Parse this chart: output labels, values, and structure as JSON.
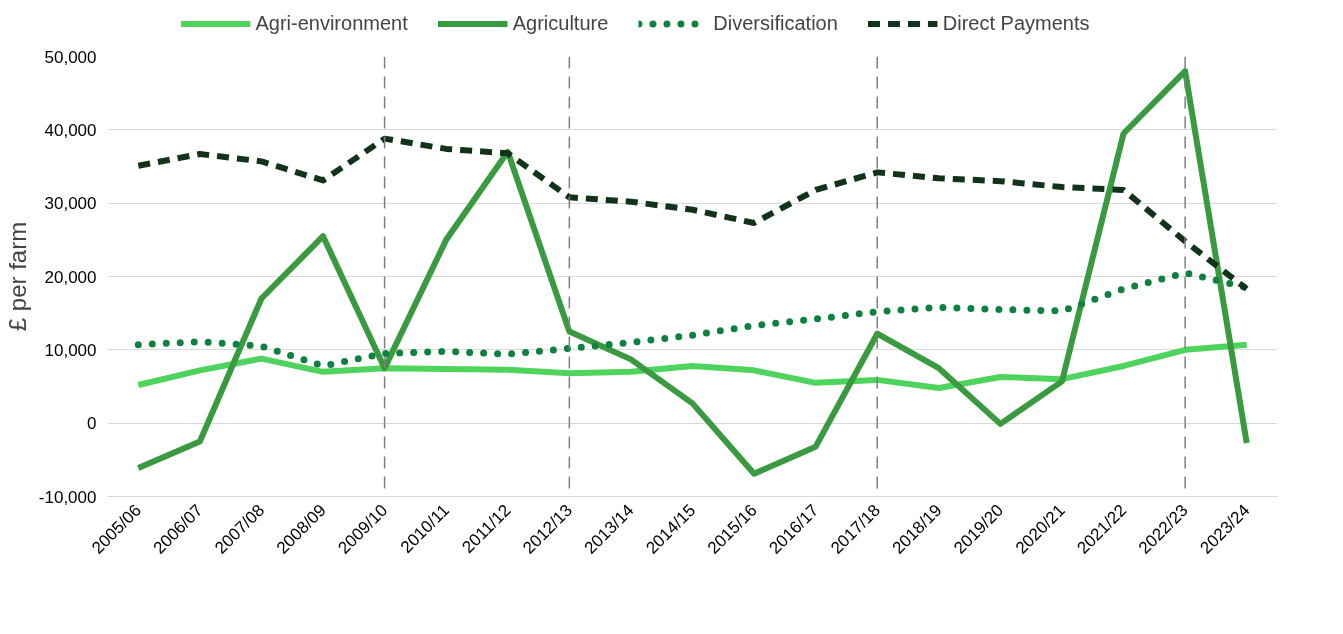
{
  "chart_data": {
    "type": "line",
    "ylabel": "£ per farm",
    "categories": [
      "2005/06",
      "2006/07",
      "2007/08",
      "2008/09",
      "2009/10",
      "2010/11",
      "2011/12",
      "2012/13",
      "2013/14",
      "2014/15",
      "2015/16",
      "2016/17",
      "2017/18",
      "2018/19",
      "2019/20",
      "2020/21",
      "2021/22",
      "2022/23",
      "2023/24"
    ],
    "series": [
      {
        "name": "Agri-environment",
        "color": "#4ed35c",
        "line_style": "solid",
        "values": [
          5200,
          7200,
          8800,
          7000,
          7500,
          7400,
          7300,
          6800,
          7000,
          7800,
          7200,
          5500,
          5900,
          4800,
          6300,
          6000,
          7800,
          10000,
          10700
        ]
      },
      {
        "name": "Agriculture",
        "color": "#3a9a3f",
        "line_style": "solid",
        "values": [
          -6100,
          -2500,
          17000,
          25500,
          7500,
          25000,
          37000,
          12500,
          8700,
          2700,
          -6900,
          -3200,
          12200,
          7500,
          -100,
          5700,
          39500,
          48000,
          -2700
        ]
      },
      {
        "name": "Diversification",
        "color": "#0e8040",
        "line_style": "dotted",
        "values": [
          10700,
          11100,
          10500,
          7800,
          9500,
          9800,
          9400,
          10200,
          11000,
          12000,
          13300,
          14200,
          15200,
          15800,
          15500,
          15300,
          18300,
          20500,
          18500
        ]
      },
      {
        "name": "Direct Payments",
        "color": "#10331a",
        "line_style": "dashed",
        "values": [
          35100,
          36700,
          35700,
          33100,
          38800,
          37400,
          36800,
          30800,
          30200,
          29100,
          27300,
          31800,
          34200,
          33400,
          33000,
          32200,
          31800,
          24800,
          18300
        ]
      }
    ],
    "ylim": [
      -10000,
      50000
    ],
    "yticks": [
      {
        "value": -10000,
        "label": "-10,000"
      },
      {
        "value": 0,
        "label": "0"
      },
      {
        "value": 10000,
        "label": "10,000"
      },
      {
        "value": 20000,
        "label": "20,000"
      },
      {
        "value": 30000,
        "label": "30,000"
      },
      {
        "value": 40000,
        "label": "40,000"
      },
      {
        "value": 50000,
        "label": "50,000"
      }
    ],
    "ref_lines": [
      {
        "axis": "x",
        "value": "2009/10",
        "color": "#808080",
        "line_style": "dashed"
      },
      {
        "axis": "x",
        "value": "2012/13",
        "color": "#808080",
        "line_style": "dashed"
      },
      {
        "axis": "x",
        "value": "2017/18",
        "color": "#808080",
        "line_style": "dashed"
      },
      {
        "axis": "x",
        "value": "2022/23",
        "color": "#808080",
        "line_style": "dashed"
      }
    ],
    "grid": "y",
    "legend": "top"
  }
}
